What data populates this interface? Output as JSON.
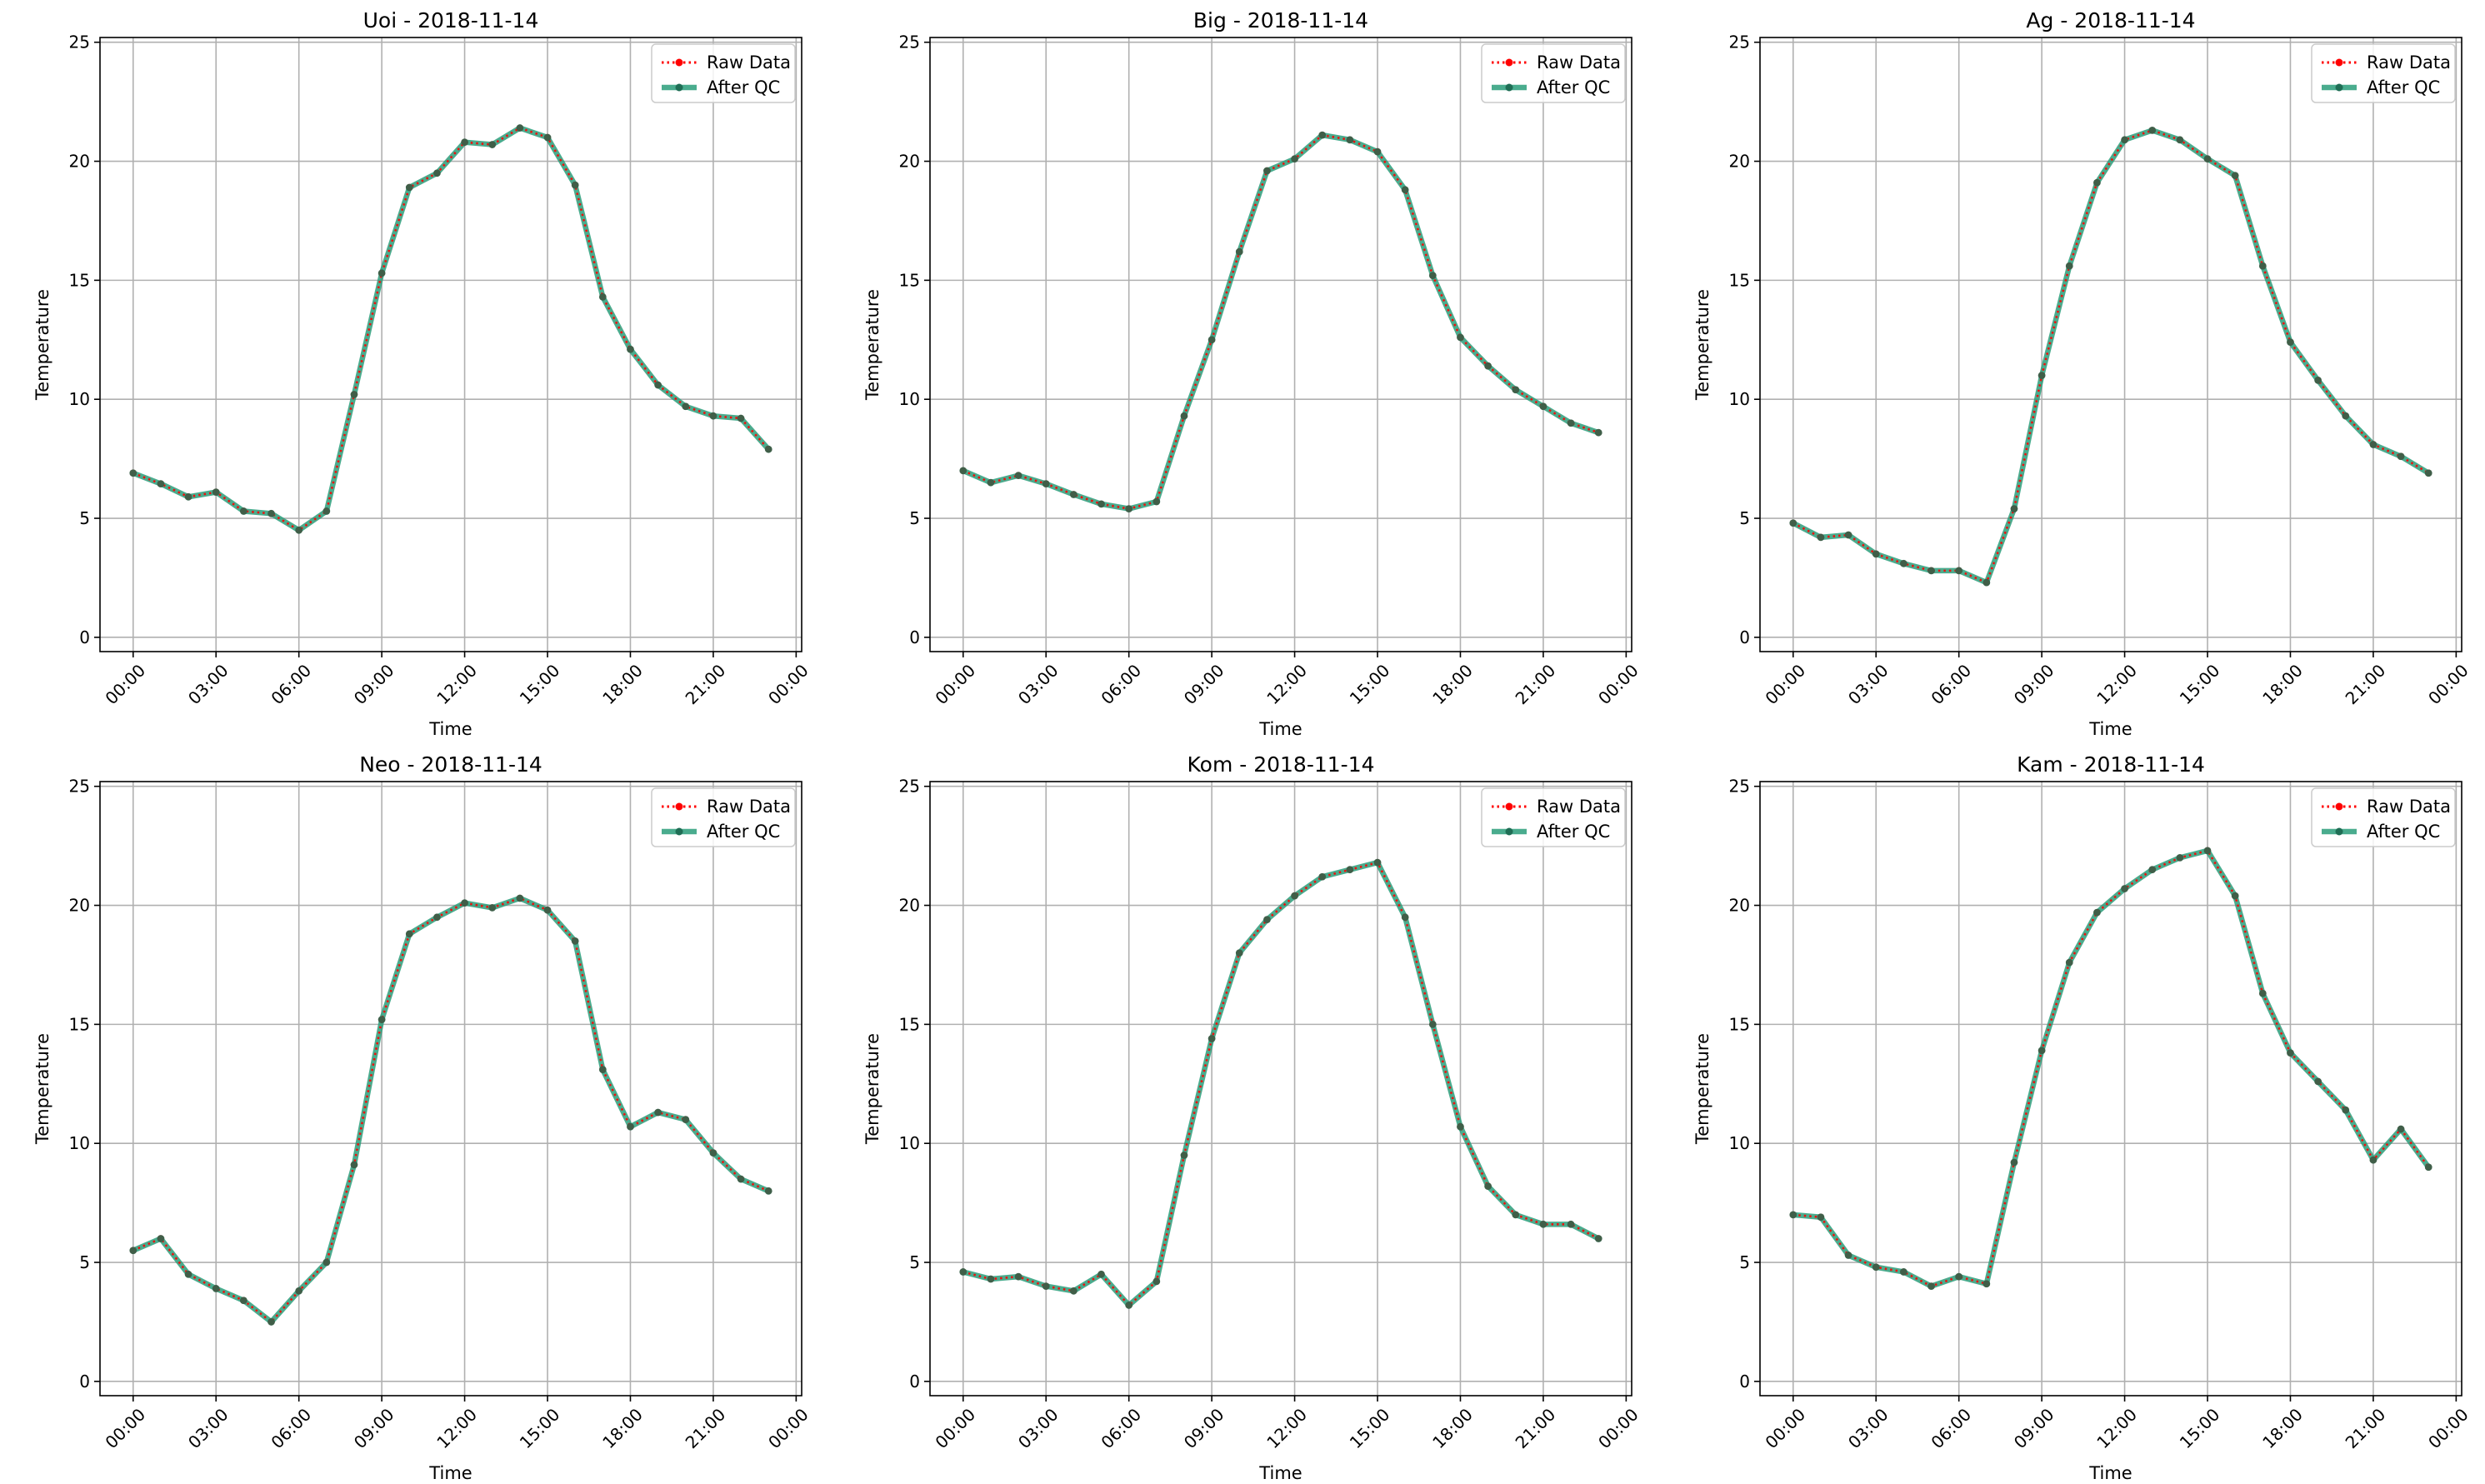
{
  "figure": {
    "legend_labels": {
      "raw": "Raw Data",
      "qc": "After QC"
    },
    "colors": {
      "raw": "#ff0000",
      "qc": "#2a9d7a",
      "qc_marker": "#1f6e55",
      "grid": "#b0b0b0",
      "axes": "#000000"
    }
  },
  "chart_data": [
    {
      "type": "line",
      "title": "Uoi - 2018-11-14",
      "xlabel": "Time",
      "ylabel": "Temperature",
      "x_unit": "hour",
      "x": [
        0,
        1,
        2,
        3,
        4,
        5,
        6,
        7,
        8,
        9,
        10,
        11,
        12,
        13,
        14,
        15,
        16,
        17,
        18,
        19,
        20,
        21,
        22,
        23
      ],
      "xticks": [
        "00:00",
        "03:00",
        "06:00",
        "09:00",
        "12:00",
        "15:00",
        "18:00",
        "21:00",
        "00:00"
      ],
      "xtick_values": [
        0,
        3,
        6,
        9,
        12,
        15,
        18,
        21,
        24
      ],
      "ylim": [
        -0.6,
        25.2
      ],
      "yticks": [
        0,
        5,
        10,
        15,
        20,
        25
      ],
      "grid": true,
      "legend_loc": "upper right",
      "series": [
        {
          "name": "Raw Data",
          "values": [
            6.9,
            6.45,
            5.9,
            6.1,
            5.3,
            5.2,
            4.5,
            5.3,
            10.2,
            15.3,
            18.9,
            19.5,
            20.8,
            20.7,
            21.4,
            21.0,
            19.0,
            14.3,
            12.1,
            10.6,
            9.7,
            9.3,
            9.2,
            7.9
          ]
        },
        {
          "name": "After QC",
          "values": [
            6.9,
            6.45,
            5.9,
            6.1,
            5.3,
            5.2,
            4.5,
            5.3,
            10.2,
            15.3,
            18.9,
            19.5,
            20.8,
            20.7,
            21.4,
            21.0,
            19.0,
            14.3,
            12.1,
            10.6,
            9.7,
            9.3,
            9.2,
            7.9
          ]
        }
      ]
    },
    {
      "type": "line",
      "title": "Big - 2018-11-14",
      "xlabel": "Time",
      "ylabel": "Temperature",
      "x_unit": "hour",
      "x": [
        0,
        1,
        2,
        3,
        4,
        5,
        6,
        7,
        8,
        9,
        10,
        11,
        12,
        13,
        14,
        15,
        16,
        17,
        18,
        19,
        20,
        21,
        22,
        23
      ],
      "xticks": [
        "00:00",
        "03:00",
        "06:00",
        "09:00",
        "12:00",
        "15:00",
        "18:00",
        "21:00",
        "00:00"
      ],
      "xtick_values": [
        0,
        3,
        6,
        9,
        12,
        15,
        18,
        21,
        24
      ],
      "ylim": [
        -0.6,
        25.2
      ],
      "yticks": [
        0,
        5,
        10,
        15,
        20,
        25
      ],
      "grid": true,
      "legend_loc": "upper right",
      "series": [
        {
          "name": "Raw Data",
          "values": [
            7.0,
            6.5,
            6.8,
            6.45,
            6.0,
            5.6,
            5.4,
            5.7,
            9.3,
            12.5,
            16.2,
            19.6,
            20.1,
            21.1,
            20.9,
            20.4,
            18.8,
            15.2,
            12.6,
            11.4,
            10.4,
            9.7,
            9.0,
            8.6
          ]
        },
        {
          "name": "After QC",
          "values": [
            7.0,
            6.5,
            6.8,
            6.45,
            6.0,
            5.6,
            5.4,
            5.7,
            9.3,
            12.5,
            16.2,
            19.6,
            20.1,
            21.1,
            20.9,
            20.4,
            18.8,
            15.2,
            12.6,
            11.4,
            10.4,
            9.7,
            9.0,
            8.6
          ]
        }
      ]
    },
    {
      "type": "line",
      "title": "Ag - 2018-11-14",
      "xlabel": "Time",
      "ylabel": "Temperature",
      "x_unit": "hour",
      "x": [
        0,
        1,
        2,
        3,
        4,
        5,
        6,
        7,
        8,
        9,
        10,
        11,
        12,
        13,
        14,
        15,
        16,
        17,
        18,
        19,
        20,
        21,
        22,
        23
      ],
      "xticks": [
        "00:00",
        "03:00",
        "06:00",
        "09:00",
        "12:00",
        "15:00",
        "18:00",
        "21:00",
        "00:00"
      ],
      "xtick_values": [
        0,
        3,
        6,
        9,
        12,
        15,
        18,
        21,
        24
      ],
      "ylim": [
        -0.6,
        25.2
      ],
      "yticks": [
        0,
        5,
        10,
        15,
        20,
        25
      ],
      "grid": true,
      "legend_loc": "upper right",
      "series": [
        {
          "name": "Raw Data",
          "values": [
            4.8,
            4.2,
            4.3,
            3.5,
            3.1,
            2.8,
            2.8,
            2.3,
            5.4,
            11.0,
            15.6,
            19.1,
            20.9,
            21.3,
            20.9,
            20.1,
            19.4,
            15.6,
            12.4,
            10.8,
            9.3,
            8.1,
            7.6,
            6.9
          ]
        },
        {
          "name": "After QC",
          "values": [
            4.8,
            4.2,
            4.3,
            3.5,
            3.1,
            2.8,
            2.8,
            2.3,
            5.4,
            11.0,
            15.6,
            19.1,
            20.9,
            21.3,
            20.9,
            20.1,
            19.4,
            15.6,
            12.4,
            10.8,
            9.3,
            8.1,
            7.6,
            6.9
          ]
        }
      ]
    },
    {
      "type": "line",
      "title": "Neo - 2018-11-14",
      "xlabel": "Time",
      "ylabel": "Temperature",
      "x_unit": "hour",
      "x": [
        0,
        1,
        2,
        3,
        4,
        5,
        6,
        7,
        8,
        9,
        10,
        11,
        12,
        13,
        14,
        15,
        16,
        17,
        18,
        19,
        20,
        21,
        22,
        23
      ],
      "xticks": [
        "00:00",
        "03:00",
        "06:00",
        "09:00",
        "12:00",
        "15:00",
        "18:00",
        "21:00",
        "00:00"
      ],
      "xtick_values": [
        0,
        3,
        6,
        9,
        12,
        15,
        18,
        21,
        24
      ],
      "ylim": [
        -0.6,
        25.2
      ],
      "yticks": [
        0,
        5,
        10,
        15,
        20,
        25
      ],
      "grid": true,
      "legend_loc": "upper right",
      "series": [
        {
          "name": "Raw Data",
          "values": [
            5.5,
            6.0,
            4.5,
            3.9,
            3.4,
            2.5,
            3.8,
            5.0,
            9.1,
            15.2,
            18.8,
            19.5,
            20.1,
            19.9,
            20.3,
            19.8,
            18.5,
            13.1,
            10.7,
            11.3,
            11.0,
            9.6,
            8.5,
            8.0
          ]
        },
        {
          "name": "After QC",
          "values": [
            5.5,
            6.0,
            4.5,
            3.9,
            3.4,
            2.5,
            3.8,
            5.0,
            9.1,
            15.2,
            18.8,
            19.5,
            20.1,
            19.9,
            20.3,
            19.8,
            18.5,
            13.1,
            10.7,
            11.3,
            11.0,
            9.6,
            8.5,
            8.0
          ]
        }
      ]
    },
    {
      "type": "line",
      "title": "Kom - 2018-11-14",
      "xlabel": "Time",
      "ylabel": "Temperature",
      "x_unit": "hour",
      "x": [
        0,
        1,
        2,
        3,
        4,
        5,
        6,
        7,
        8,
        9,
        10,
        11,
        12,
        13,
        14,
        15,
        16,
        17,
        18,
        19,
        20,
        21,
        22,
        23
      ],
      "xticks": [
        "00:00",
        "03:00",
        "06:00",
        "09:00",
        "12:00",
        "15:00",
        "18:00",
        "21:00",
        "00:00"
      ],
      "xtick_values": [
        0,
        3,
        6,
        9,
        12,
        15,
        18,
        21,
        24
      ],
      "ylim": [
        -0.6,
        25.2
      ],
      "yticks": [
        0,
        5,
        10,
        15,
        20,
        25
      ],
      "grid": true,
      "legend_loc": "upper right",
      "series": [
        {
          "name": "Raw Data",
          "values": [
            4.6,
            4.3,
            4.4,
            4.0,
            3.8,
            4.5,
            3.2,
            4.2,
            9.5,
            14.4,
            18.0,
            19.4,
            20.4,
            21.2,
            21.5,
            21.8,
            19.5,
            15.0,
            10.7,
            8.2,
            7.0,
            6.6,
            6.6,
            6.0
          ]
        },
        {
          "name": "After QC",
          "values": [
            4.6,
            4.3,
            4.4,
            4.0,
            3.8,
            4.5,
            3.2,
            4.2,
            9.5,
            14.4,
            18.0,
            19.4,
            20.4,
            21.2,
            21.5,
            21.8,
            19.5,
            15.0,
            10.7,
            8.2,
            7.0,
            6.6,
            6.6,
            6.0
          ]
        }
      ]
    },
    {
      "type": "line",
      "title": "Kam - 2018-11-14",
      "xlabel": "Time",
      "ylabel": "Temperature",
      "x_unit": "hour",
      "x": [
        0,
        1,
        2,
        3,
        4,
        5,
        6,
        7,
        8,
        9,
        10,
        11,
        12,
        13,
        14,
        15,
        16,
        17,
        18,
        19,
        20,
        21,
        22,
        23
      ],
      "xticks": [
        "00:00",
        "03:00",
        "06:00",
        "09:00",
        "12:00",
        "15:00",
        "18:00",
        "21:00",
        "00:00"
      ],
      "xtick_values": [
        0,
        3,
        6,
        9,
        12,
        15,
        18,
        21,
        24
      ],
      "ylim": [
        -0.6,
        25.2
      ],
      "yticks": [
        0,
        5,
        10,
        15,
        20,
        25
      ],
      "grid": true,
      "legend_loc": "upper right",
      "series": [
        {
          "name": "Raw Data",
          "values": [
            7.0,
            6.9,
            5.3,
            4.8,
            4.6,
            4.0,
            4.4,
            4.1,
            9.2,
            13.9,
            17.6,
            19.7,
            20.7,
            21.5,
            22.0,
            22.3,
            20.4,
            16.3,
            13.8,
            12.6,
            11.4,
            9.3,
            10.6,
            9.0
          ]
        },
        {
          "name": "After QC",
          "values": [
            7.0,
            6.9,
            5.3,
            4.8,
            4.6,
            4.0,
            4.4,
            4.1,
            9.2,
            13.9,
            17.6,
            19.7,
            20.7,
            21.5,
            22.0,
            22.3,
            20.4,
            16.3,
            13.8,
            12.6,
            11.4,
            9.3,
            10.6,
            9.0
          ]
        }
      ]
    }
  ]
}
